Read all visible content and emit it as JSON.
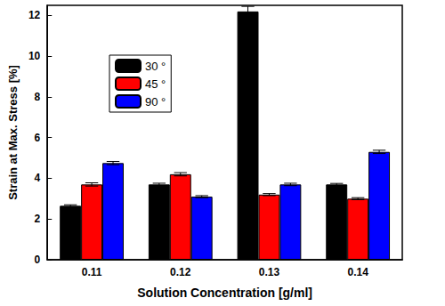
{
  "chart_data": {
    "type": "bar",
    "x_label": "Solution Concentration [g/ml]",
    "y_label": "Strain at Max. Stress [%]",
    "categories": [
      "0.11",
      "0.12",
      "0.13",
      "0.14"
    ],
    "series": [
      {
        "name": "30 °",
        "color": "#000000",
        "values": [
          2.65,
          3.7,
          12.2,
          3.7
        ],
        "error": [
          0.05,
          0.06,
          0.25,
          0.05
        ]
      },
      {
        "name": "45 °",
        "color": "#ff0000",
        "values": [
          3.7,
          4.2,
          3.2,
          3.0
        ],
        "error": [
          0.08,
          0.08,
          0.05,
          0.05
        ]
      },
      {
        "name": "90 °",
        "color": "#0000ff",
        "values": [
          4.75,
          3.1,
          3.7,
          5.3
        ],
        "error": [
          0.08,
          0.05,
          0.06,
          0.08
        ]
      }
    ],
    "ylim": [
      0,
      12.5
    ],
    "yticks": [
      0,
      2,
      4,
      6,
      8,
      10,
      12
    ],
    "legend": "upper left",
    "grid": false
  }
}
